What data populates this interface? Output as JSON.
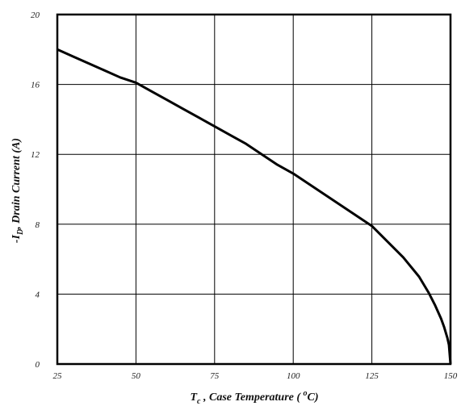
{
  "chart_data": {
    "type": "line",
    "title": "",
    "xlabel": {
      "symbol": "T",
      "subscript": "c",
      "text": " , Case Temperature ( ",
      "superscript": "o",
      "unit": "C)"
    },
    "ylabel": {
      "symbol": "-I",
      "subscript": "D",
      "text": ", Drain Current (A)"
    },
    "xlim": [
      25,
      150
    ],
    "ylim": [
      0,
      20
    ],
    "x_ticks": [
      25,
      50,
      75,
      100,
      125,
      150
    ],
    "x_tick_labels": [
      "25",
      "50",
      "75",
      "100",
      "125",
      "150"
    ],
    "y_ticks": [
      0,
      4,
      8,
      12,
      16,
      20
    ],
    "y_tick_labels": [
      "0",
      "4",
      "8",
      "12",
      "16",
      "20"
    ],
    "grid": true,
    "series": [
      {
        "x": [
          25,
          30,
          35,
          40,
          45,
          50,
          55,
          60,
          65,
          70,
          75,
          80,
          85,
          90,
          95,
          100,
          105,
          110,
          115,
          120,
          125,
          130,
          135,
          140,
          143,
          145,
          147,
          148,
          149,
          149.5,
          150
        ],
        "y": [
          18.0,
          17.6,
          17.2,
          16.8,
          16.4,
          16.1,
          15.6,
          15.1,
          14.6,
          14.1,
          13.6,
          13.1,
          12.6,
          12.0,
          11.4,
          10.9,
          10.3,
          9.7,
          9.1,
          8.5,
          7.9,
          7.0,
          6.1,
          5.0,
          4.1,
          3.4,
          2.6,
          2.1,
          1.5,
          1.1,
          0.0
        ]
      }
    ]
  }
}
